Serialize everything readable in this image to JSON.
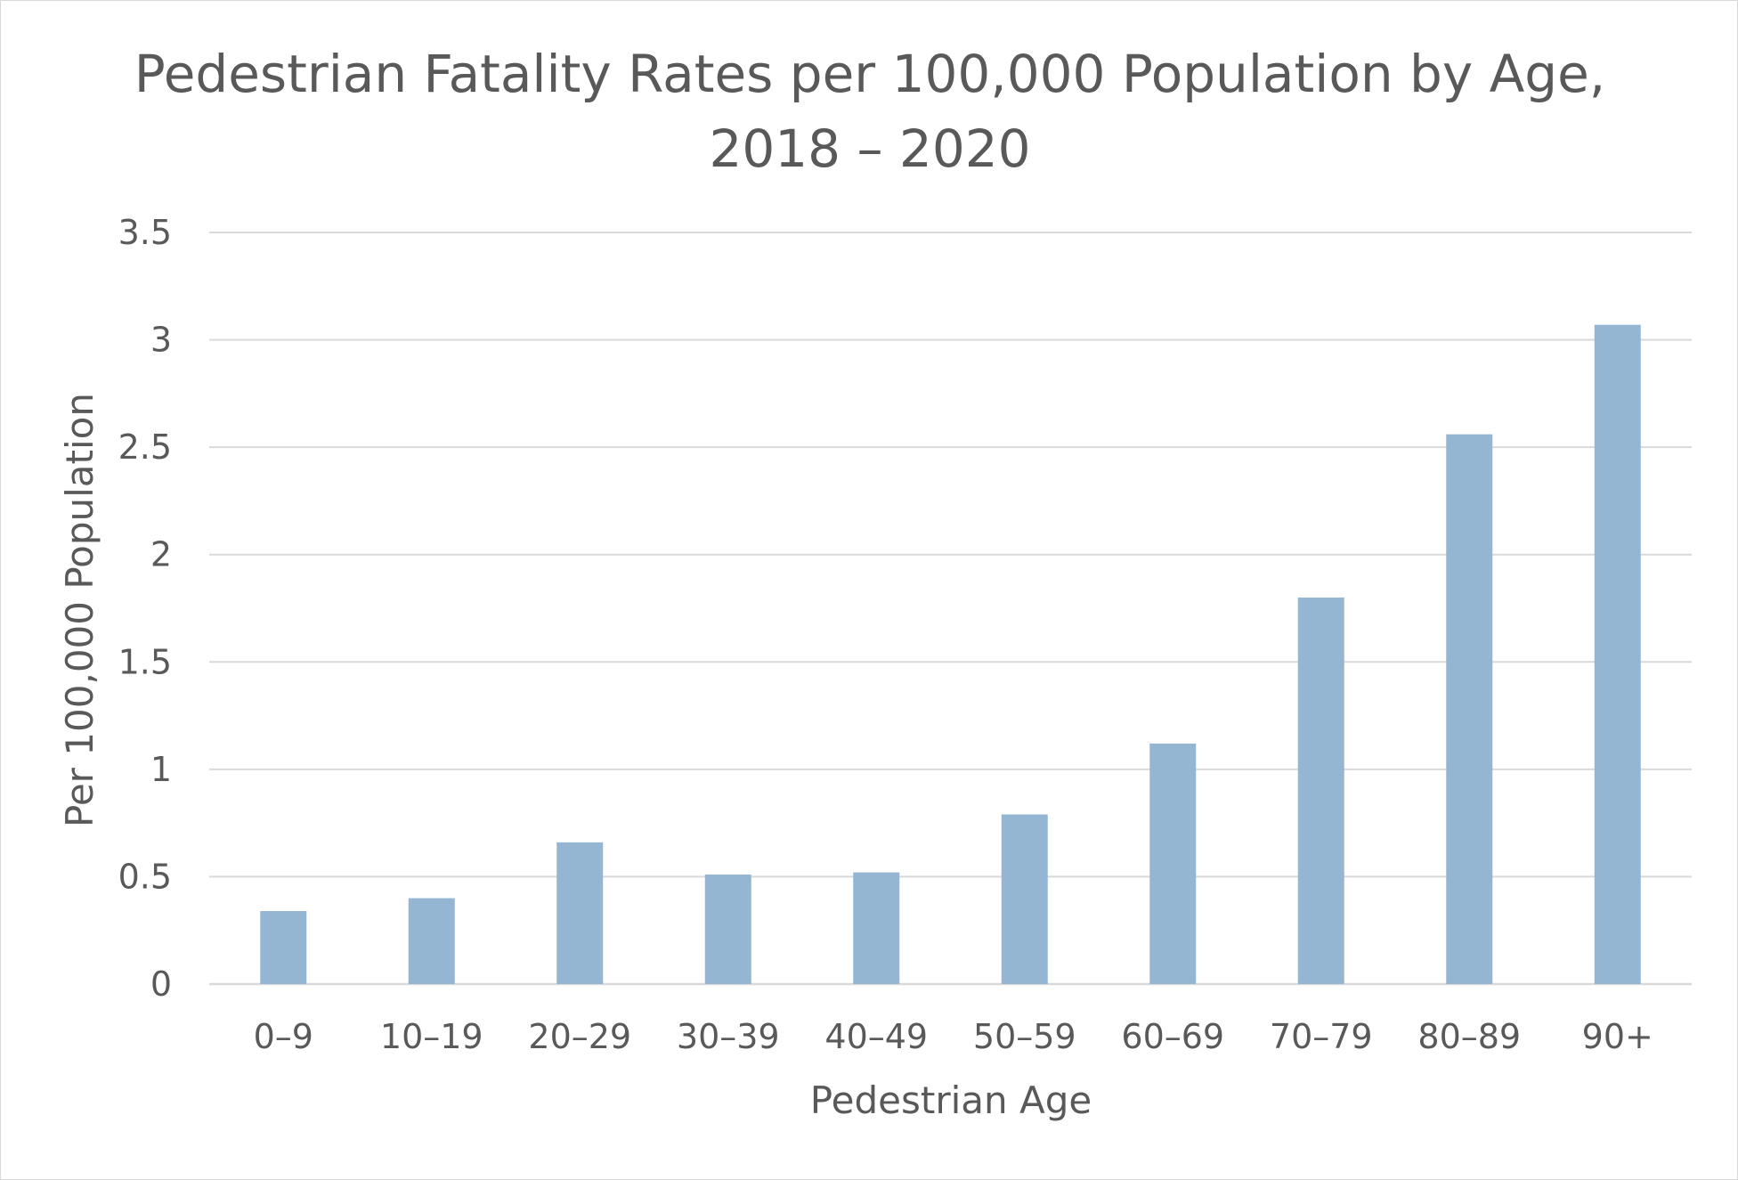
{
  "chart_data": {
    "type": "bar",
    "title": "Pedestrian Fatality Rates per 100,000 Population by Age,",
    "subtitle": "2018 – 2020",
    "xlabel": "Pedestrian Age",
    "ylabel": "Per 100,000 Population",
    "categories": [
      "0–9",
      "10–19",
      "20–29",
      "30–39",
      "40–49",
      "50–59",
      "60–69",
      "70–79",
      "80–89",
      "90+"
    ],
    "values": [
      0.34,
      0.4,
      0.66,
      0.51,
      0.52,
      0.79,
      1.12,
      1.8,
      2.56,
      3.07
    ],
    "yticks": [
      "0",
      "0.5",
      "1",
      "1.5",
      "2",
      "2.5",
      "3",
      "3.5"
    ],
    "ylim": [
      0,
      3.5
    ],
    "grid": true,
    "legend": "none",
    "bar_color": "#95b6d3",
    "grid_color": "#d9d9d9",
    "text_color": "#595959"
  }
}
